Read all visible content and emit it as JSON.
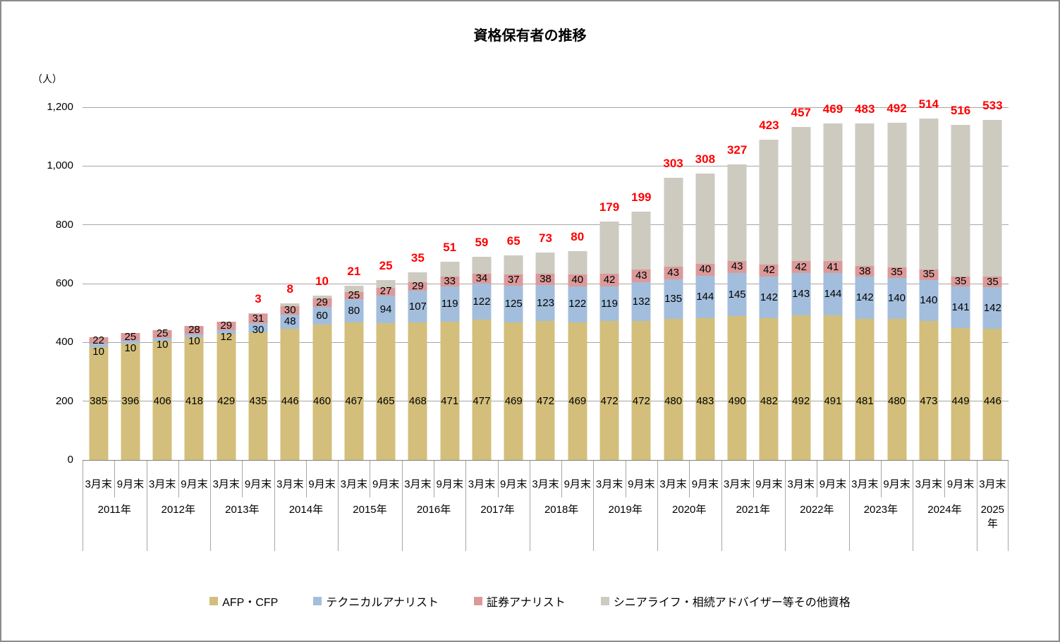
{
  "title": "資格保有者の推移",
  "y_axis": {
    "unit_label": "（人）",
    "ticks": [
      {
        "label": "0",
        "value": 0
      },
      {
        "label": "200",
        "value": 200
      },
      {
        "label": "400",
        "value": 400
      },
      {
        "label": "600",
        "value": 600
      },
      {
        "label": "800",
        "value": 800
      },
      {
        "label": "1,000",
        "value": 1000
      },
      {
        "label": "1,200",
        "value": 1200
      }
    ]
  },
  "x_axis": {
    "period_labels": [
      "3月末",
      "9月末",
      "3月末",
      "9月末",
      "3月末",
      "9月末",
      "3月末",
      "9月末",
      "3月末",
      "9月末",
      "3月末",
      "9月末",
      "3月末",
      "9月末",
      "3月末",
      "9月末",
      "3月末",
      "9月末",
      "3月末",
      "9月末",
      "3月末",
      "9月末",
      "3月末",
      "9月末",
      "3月末",
      "9月末",
      "3月末",
      "9月末",
      "3月末"
    ],
    "year_groups": [
      {
        "label": "2011年",
        "span": 2
      },
      {
        "label": "2012年",
        "span": 2
      },
      {
        "label": "2013年",
        "span": 2
      },
      {
        "label": "2014年",
        "span": 2
      },
      {
        "label": "2015年",
        "span": 2
      },
      {
        "label": "2016年",
        "span": 2
      },
      {
        "label": "2017年",
        "span": 2
      },
      {
        "label": "2018年",
        "span": 2
      },
      {
        "label": "2019年",
        "span": 2
      },
      {
        "label": "2020年",
        "span": 2
      },
      {
        "label": "2021年",
        "span": 2
      },
      {
        "label": "2022年",
        "span": 2
      },
      {
        "label": "2023年",
        "span": 2
      },
      {
        "label": "2024年",
        "span": 2
      },
      {
        "label": "2025年",
        "span": 1
      }
    ]
  },
  "colors": {
    "grid": "#A6A6A6",
    "axis": "#808080",
    "canvas_border": "#8C8C8C",
    "value_label": "#000000",
    "other_total_label": "#FF0000"
  },
  "chart_data": {
    "type": "bar",
    "stacked": true,
    "title": "資格保有者の推移",
    "ylabel": "（人）",
    "ylim": [
      0,
      1200
    ],
    "ytick_interval": 200,
    "grid": true,
    "legend_position": "bottom",
    "categories": [
      "2011年3月末",
      "2011年9月末",
      "2012年3月末",
      "2012年9月末",
      "2013年3月末",
      "2013年9月末",
      "2014年3月末",
      "2014年9月末",
      "2015年3月末",
      "2015年9月末",
      "2016年3月末",
      "2016年9月末",
      "2017年3月末",
      "2017年9月末",
      "2018年3月末",
      "2018年9月末",
      "2019年3月末",
      "2019年9月末",
      "2020年3月末",
      "2020年9月末",
      "2021年3月末",
      "2021年9月末",
      "2022年3月末",
      "2022年9月末",
      "2023年3月末",
      "2023年9月末",
      "2024年3月末",
      "2024年9月末",
      "2025年3月末"
    ],
    "series": [
      {
        "key": "afp_cfp",
        "name": "AFP・CFP",
        "color": "#D3BF7B",
        "values": [
          385,
          396,
          406,
          418,
          429,
          435,
          446,
          460,
          467,
          465,
          468,
          471,
          477,
          469,
          472,
          469,
          472,
          472,
          480,
          483,
          490,
          482,
          492,
          491,
          481,
          480,
          473,
          449,
          446
        ]
      },
      {
        "key": "technical_analyst",
        "name": "テクニカルアナリスト",
        "color": "#A3BEDC",
        "values": [
          10,
          10,
          10,
          10,
          12,
          30,
          48,
          60,
          80,
          94,
          107,
          119,
          122,
          125,
          123,
          122,
          119,
          132,
          135,
          144,
          145,
          142,
          143,
          144,
          142,
          140,
          140,
          141,
          142
        ]
      },
      {
        "key": "securities_analyst",
        "name": "証券アナリスト",
        "color": "#DB9A99",
        "values": [
          22,
          25,
          25,
          28,
          29,
          31,
          30,
          29,
          25,
          27,
          29,
          33,
          34,
          37,
          38,
          40,
          42,
          43,
          43,
          40,
          43,
          42,
          42,
          41,
          38,
          35,
          35,
          35,
          35
        ]
      },
      {
        "key": "senior_life_other",
        "name": "シニアライフ・相続アドバイザー等その他資格",
        "color": "#CDCAC0",
        "label_color": "#FF0000",
        "values": [
          0,
          0,
          0,
          0,
          0,
          3,
          8,
          10,
          21,
          25,
          35,
          51,
          59,
          65,
          73,
          80,
          179,
          199,
          303,
          308,
          327,
          423,
          457,
          469,
          483,
          492,
          514,
          516,
          533
        ]
      }
    ]
  }
}
